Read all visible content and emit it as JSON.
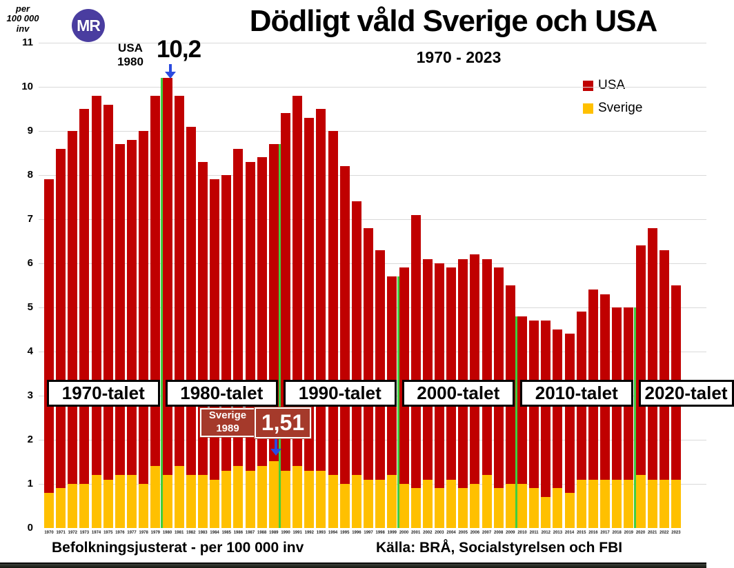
{
  "header": {
    "unit_label_lines": [
      "per",
      "100 000",
      "inv"
    ],
    "logo_text": "MR",
    "title": "Dödligt våld Sverige och USA",
    "subtitle": "1970 - 2023"
  },
  "legend": {
    "items": [
      {
        "label": "USA",
        "color": "#c00000"
      },
      {
        "label": "Sverige",
        "color": "#ffc000"
      }
    ]
  },
  "annotations": {
    "usa_peak": {
      "label_line1": "USA",
      "label_line2": "1980",
      "value": "10,2"
    },
    "sweden_peak": {
      "label_line1": "Sverige",
      "label_line2": "1989",
      "value": "1,51"
    }
  },
  "captions": {
    "left": "Befolkningsjusterat - per 100 000 inv",
    "right": "Källa: BRÅ, Socialstyrelsen och FBI"
  },
  "colors": {
    "usa": "#c00000",
    "sverige": "#ffc000",
    "separator_line": "#3fce3f",
    "annotation_box": "#a53a2b",
    "arrow": "#2b4bdf",
    "logo": "#4a3da0",
    "gridline": "#d9d9d9"
  },
  "chart_data": {
    "type": "bar",
    "title": "Dödligt våld Sverige och USA",
    "subtitle": "1970 - 2023",
    "ylabel": "per 100 000 inv",
    "ylim": [
      0,
      11
    ],
    "yticks": [
      0,
      1,
      2,
      3,
      4,
      5,
      6,
      7,
      8,
      9,
      10,
      11
    ],
    "grid": true,
    "legend_position": "top-right",
    "bar_mode": "overlaid",
    "x": [
      1970,
      1971,
      1972,
      1973,
      1974,
      1975,
      1976,
      1977,
      1978,
      1979,
      1980,
      1981,
      1982,
      1983,
      1984,
      1985,
      1986,
      1987,
      1988,
      1989,
      1990,
      1991,
      1992,
      1993,
      1994,
      1995,
      1996,
      1997,
      1998,
      1999,
      2000,
      2001,
      2002,
      2003,
      2004,
      2005,
      2006,
      2007,
      2008,
      2009,
      2010,
      2011,
      2012,
      2013,
      2014,
      2015,
      2016,
      2017,
      2018,
      2019,
      2020,
      2021,
      2022,
      2023
    ],
    "series": [
      {
        "name": "USA",
        "color": "#c00000",
        "values": [
          7.9,
          8.6,
          9.0,
          9.5,
          9.8,
          9.6,
          8.7,
          8.8,
          9.0,
          9.8,
          10.2,
          9.8,
          9.1,
          8.3,
          7.9,
          8.0,
          8.6,
          8.3,
          8.4,
          8.7,
          9.4,
          9.8,
          9.3,
          9.5,
          9.0,
          8.2,
          7.4,
          6.8,
          6.3,
          5.7,
          5.9,
          7.1,
          6.1,
          6.0,
          5.9,
          6.1,
          6.2,
          6.1,
          5.9,
          5.5,
          4.8,
          4.7,
          4.7,
          4.5,
          4.4,
          4.9,
          5.4,
          5.3,
          5.0,
          5.0,
          6.4,
          6.8,
          6.3,
          5.5
        ]
      },
      {
        "name": "Sverige",
        "color": "#ffc000",
        "values": [
          0.8,
          0.9,
          1.0,
          1.0,
          1.2,
          1.1,
          1.2,
          1.2,
          1.0,
          1.4,
          1.2,
          1.4,
          1.2,
          1.2,
          1.1,
          1.3,
          1.4,
          1.3,
          1.4,
          1.51,
          1.3,
          1.4,
          1.3,
          1.3,
          1.2,
          1.0,
          1.2,
          1.1,
          1.1,
          1.2,
          1.0,
          0.9,
          1.1,
          0.9,
          1.1,
          0.9,
          1.0,
          1.2,
          0.9,
          1.0,
          1.0,
          0.9,
          0.7,
          0.9,
          0.8,
          1.1,
          1.1,
          1.1,
          1.1,
          1.1,
          1.2,
          1.1,
          1.1,
          1.1
        ]
      }
    ],
    "decade_labels": [
      "1970-talet",
      "1980-talet",
      "1990-talet",
      "2000-talet",
      "2010-talet",
      "2020-talet"
    ],
    "decade_separators": [
      {
        "year": 1980,
        "line_top_value": 10.2
      },
      {
        "year": 1990,
        "line_top_value": 8.7
      },
      {
        "year": 2000,
        "line_top_value": 5.7
      },
      {
        "year": 2010,
        "line_top_value": 4.8
      },
      {
        "year": 2020,
        "line_top_value": 5.0
      }
    ]
  }
}
